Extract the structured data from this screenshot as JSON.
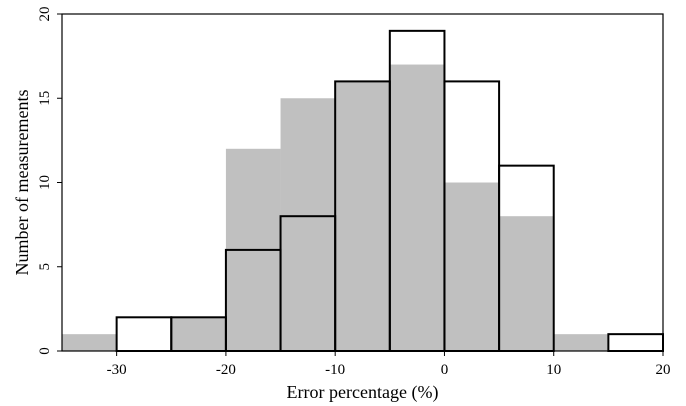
{
  "chart_data": {
    "type": "bar",
    "title": "",
    "xlabel": "Error percentage (%)",
    "ylabel": "Number of measurements",
    "xlim": [
      -35,
      20
    ],
    "ylim": [
      0,
      20
    ],
    "xticks": [
      -30,
      -20,
      -10,
      0,
      10,
      20
    ],
    "yticks": [
      0,
      5,
      10,
      15,
      20
    ],
    "bin_edges": [
      -35,
      -30,
      -25,
      -20,
      -15,
      -10,
      -5,
      0,
      5,
      10,
      15,
      20
    ],
    "grid": false,
    "legend": "none",
    "series": [
      {
        "style": "filled",
        "color": "#c0c0c0",
        "values": [
          1,
          0,
          2,
          12,
          15,
          16,
          17,
          10,
          8,
          1,
          0
        ]
      },
      {
        "style": "outline",
        "color": "#000000",
        "values": [
          0,
          2,
          2,
          6,
          8,
          16,
          19,
          16,
          11,
          0,
          1
        ]
      }
    ]
  }
}
